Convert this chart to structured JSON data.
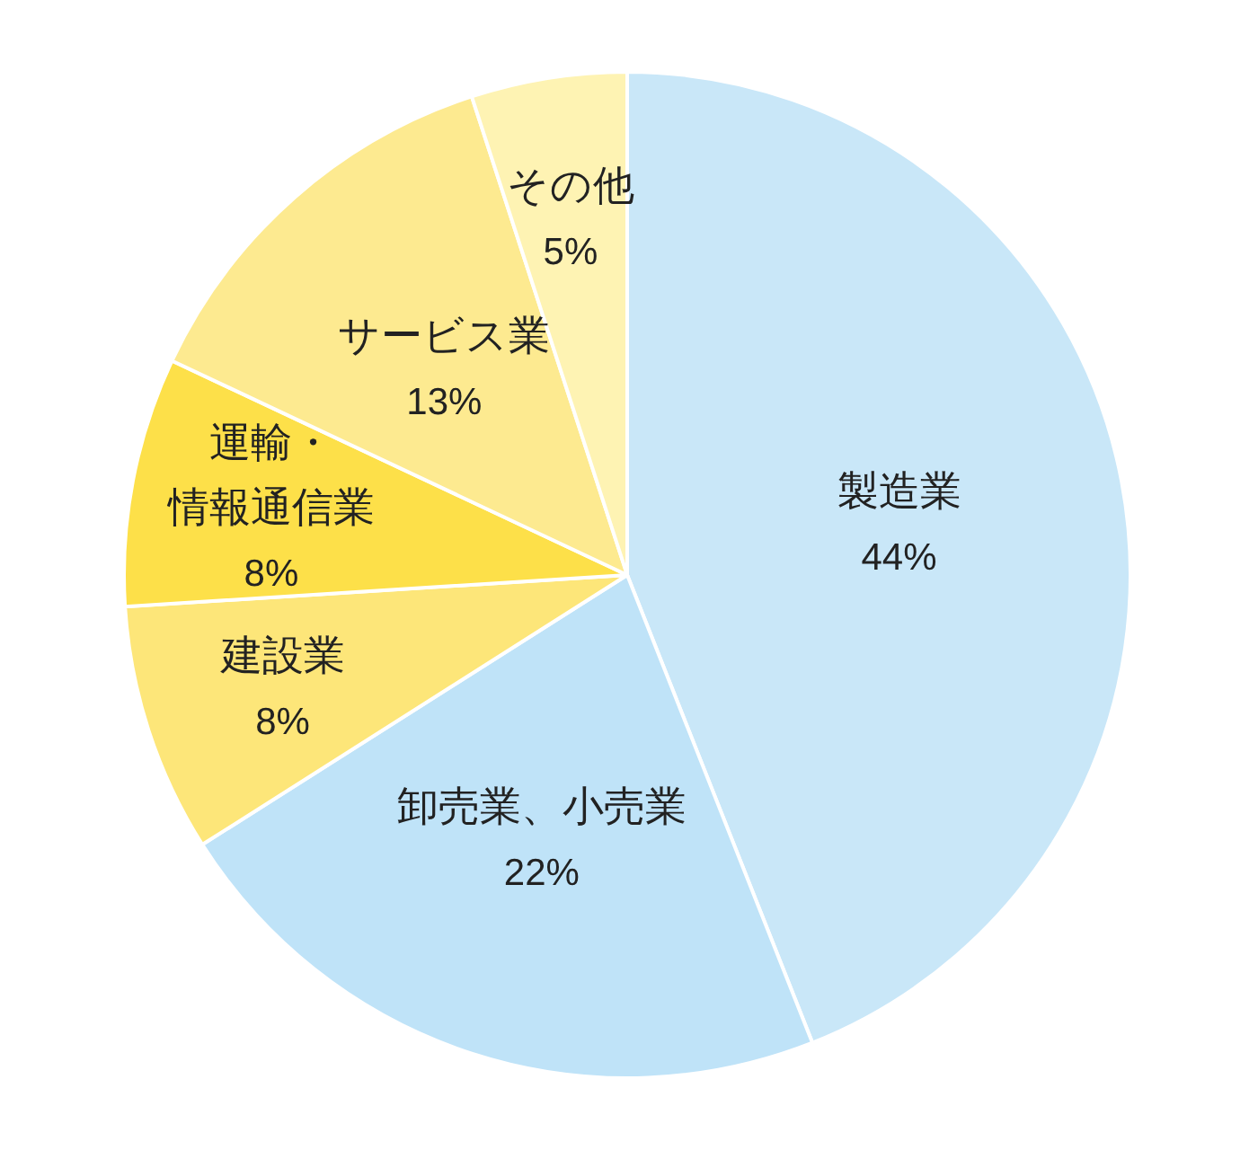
{
  "chart_data": {
    "type": "pie",
    "categories": [
      "製造業",
      "卸売業、小売業",
      "建設業",
      "運輸・情報通信業",
      "サービス業",
      "その他"
    ],
    "values": [
      44,
      22,
      8,
      8,
      13,
      5
    ],
    "value_labels": [
      "44%",
      "22%",
      "8%",
      "8%",
      "13%",
      "5%"
    ],
    "colors": [
      "#c9e7f8",
      "#bfe3f8",
      "#fde679",
      "#fde049",
      "#fdea90",
      "#fef3b3"
    ]
  }
}
